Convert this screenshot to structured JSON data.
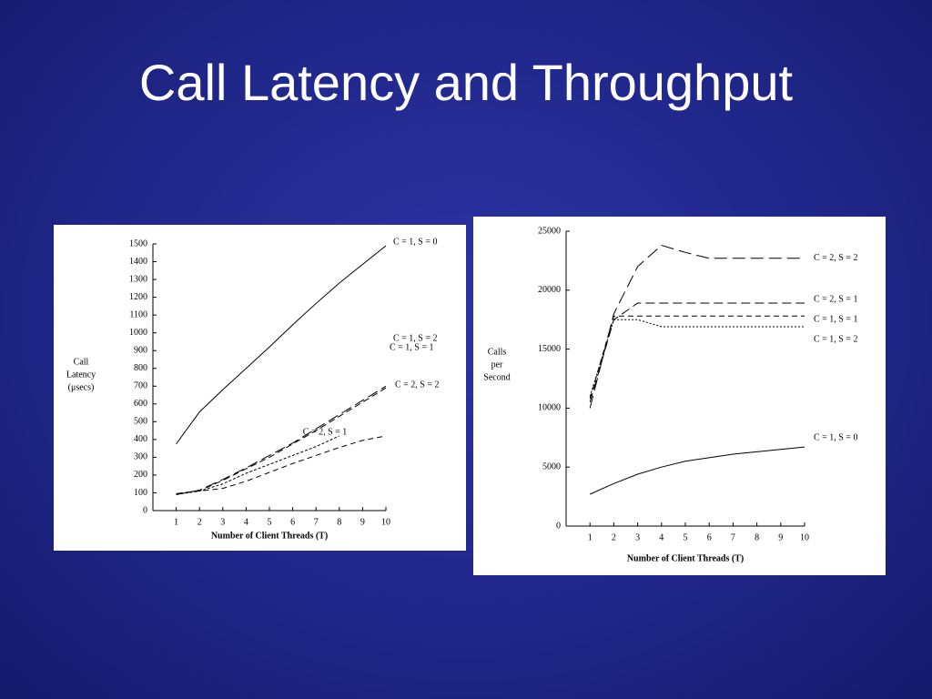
{
  "slide_title": "Call Latency and Throughput",
  "chart_data": [
    {
      "type": "line",
      "xlabel": "Number of Client Threads (T)",
      "ylabel": [
        "Call",
        "Latency",
        "(μsecs)"
      ],
      "x": [
        1,
        2,
        3,
        4,
        5,
        6,
        7,
        8,
        9,
        10
      ],
      "xlim": [
        0,
        10
      ],
      "xticks": [
        1,
        2,
        3,
        4,
        5,
        6,
        7,
        8,
        9,
        10
      ],
      "ylim": [
        0,
        1500
      ],
      "yticks": [
        0,
        100,
        200,
        300,
        400,
        500,
        600,
        700,
        800,
        900,
        1000,
        1100,
        1200,
        1300,
        1400,
        1500
      ],
      "series": [
        {
          "name": "C = 1, S = 0",
          "color": "#000000",
          "dash": "none",
          "values": [
            375,
            555,
            680,
            800,
            920,
            1045,
            1165,
            1280,
            1385,
            1490
          ]
        },
        {
          "name": "C = 1, S = 2",
          "color": "#000000",
          "dash": "12,5",
          "values": [
            90,
            115,
            175,
            240,
            310,
            380,
            460,
            540,
            620,
            700
          ]
        },
        {
          "name": "C = 1, S = 1",
          "color": "#000000",
          "dash": "7,4",
          "values": [
            95,
            112,
            170,
            235,
            300,
            375,
            450,
            530,
            610,
            690
          ]
        },
        {
          "name": "C = 2, S = 1",
          "color": "#000000",
          "dash": "3,2",
          "values": [
            90,
            110,
            150,
            210,
            260,
            310,
            360,
            420,
            null,
            null
          ]
        },
        {
          "name": "C = 2, S = 2",
          "color": "#000000",
          "dash": "6,4",
          "values": [
            95,
            110,
            125,
            165,
            215,
            265,
            310,
            355,
            395,
            420
          ]
        }
      ]
    },
    {
      "type": "line",
      "xlabel": "Number of Client Threads (T)",
      "ylabel": [
        "Calls",
        "per",
        "Second"
      ],
      "x": [
        1,
        2,
        3,
        4,
        5,
        6,
        7,
        8,
        9,
        10
      ],
      "xlim": [
        0,
        10
      ],
      "xticks": [
        1,
        2,
        3,
        4,
        5,
        6,
        7,
        8,
        9,
        10
      ],
      "ylim": [
        0,
        25000
      ],
      "yticks": [
        0,
        5000,
        10000,
        15000,
        20000,
        25000
      ],
      "series": [
        {
          "name": "C = 2, S = 2",
          "color": "#000000",
          "dash": "14,6",
          "values": [
            10000,
            18000,
            22000,
            23800,
            23200,
            22700,
            22700,
            22700,
            22700,
            22700
          ]
        },
        {
          "name": "C = 2, S = 1",
          "color": "#000000",
          "dash": "10,5",
          "values": [
            10500,
            17500,
            18900,
            18900,
            18900,
            18900,
            18900,
            18900,
            18900,
            18900
          ]
        },
        {
          "name": "C = 1, S = 1",
          "color": "#000000",
          "dash": "6,4",
          "values": [
            10800,
            17800,
            17800,
            17800,
            17800,
            17800,
            17800,
            17800,
            17800,
            17800
          ]
        },
        {
          "name": "C = 1, S = 2",
          "color": "#000000",
          "dash": "2,2",
          "values": [
            11000,
            17500,
            17500,
            16900,
            16900,
            16900,
            16900,
            16900,
            16900,
            16900
          ]
        },
        {
          "name": "C = 1, S = 0",
          "color": "#000000",
          "dash": "none",
          "values": [
            2700,
            3600,
            4400,
            5000,
            5500,
            5800,
            6100,
            6300,
            6500,
            6700
          ]
        }
      ]
    }
  ]
}
